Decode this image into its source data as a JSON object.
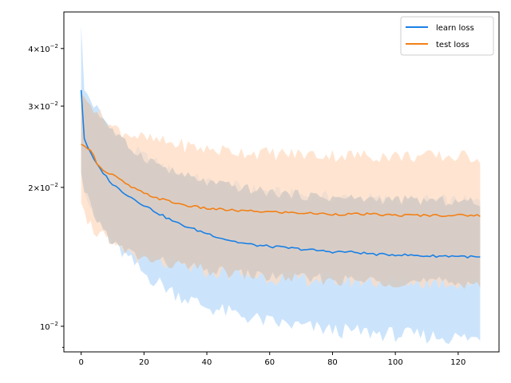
{
  "chart_data": {
    "type": "line",
    "title": "",
    "xlabel": "",
    "ylabel": "",
    "y_scale": "log",
    "xlim": [
      -5.5,
      133
    ],
    "ylim": [
      0.0088,
      0.048
    ],
    "grid": false,
    "legend": {
      "position": "top-right"
    },
    "x_ticks": [
      0,
      20,
      40,
      60,
      80,
      100,
      120
    ],
    "y_ticks": [
      {
        "value": 0.01,
        "label": "10^-2"
      },
      {
        "value": 0.02,
        "label": "2×10^-2"
      },
      {
        "value": 0.03,
        "label": "3×10^-2"
      },
      {
        "value": 0.04,
        "label": "4×10^-2"
      }
    ],
    "x_range": [
      0,
      127
    ],
    "series": [
      {
        "name": "learn loss",
        "color": "#1a80e6",
        "band_color": "#cce4fb",
        "mean_anchors": [
          [
            0,
            0.0325
          ],
          [
            1,
            0.0255
          ],
          [
            3,
            0.0237
          ],
          [
            5,
            0.0224
          ],
          [
            8,
            0.0211
          ],
          [
            10,
            0.0203
          ],
          [
            15,
            0.0192
          ],
          [
            20,
            0.0183
          ],
          [
            25,
            0.0175
          ],
          [
            30,
            0.0168
          ],
          [
            35,
            0.0163
          ],
          [
            40,
            0.0159
          ],
          [
            45,
            0.0155
          ],
          [
            50,
            0.0152
          ],
          [
            55,
            0.015
          ],
          [
            60,
            0.0149
          ],
          [
            65,
            0.0148
          ],
          [
            70,
            0.0147
          ],
          [
            75,
            0.0146
          ],
          [
            80,
            0.0145
          ],
          [
            85,
            0.0145
          ],
          [
            90,
            0.0144
          ],
          [
            95,
            0.0143
          ],
          [
            100,
            0.0143
          ],
          [
            110,
            0.0142
          ],
          [
            120,
            0.0142
          ],
          [
            127,
            0.0141
          ]
        ],
        "upper_anchors": [
          [
            0,
            0.045
          ],
          [
            1,
            0.0325
          ],
          [
            5,
            0.0295
          ],
          [
            10,
            0.0265
          ],
          [
            15,
            0.0245
          ],
          [
            20,
            0.0233
          ],
          [
            30,
            0.0215
          ],
          [
            40,
            0.0205
          ],
          [
            60,
            0.0195
          ],
          [
            80,
            0.019
          ],
          [
            100,
            0.0188
          ],
          [
            127,
            0.0186
          ]
        ],
        "lower_anchors": [
          [
            0,
            0.0215
          ],
          [
            1,
            0.0195
          ],
          [
            5,
            0.017
          ],
          [
            10,
            0.0152
          ],
          [
            15,
            0.014
          ],
          [
            20,
            0.013
          ],
          [
            30,
            0.0118
          ],
          [
            40,
            0.011
          ],
          [
            60,
            0.0102
          ],
          [
            80,
            0.0098
          ],
          [
            100,
            0.0096
          ],
          [
            127,
            0.0094
          ]
        ]
      },
      {
        "name": "test loss",
        "color": "#f28017",
        "band_color": "#ffdcc1",
        "mean_anchors": [
          [
            0,
            0.0248
          ],
          [
            3,
            0.0242
          ],
          [
            5,
            0.0226
          ],
          [
            8,
            0.0215
          ],
          [
            10,
            0.0213
          ],
          [
            15,
            0.0202
          ],
          [
            20,
            0.0194
          ],
          [
            25,
            0.0189
          ],
          [
            30,
            0.0185
          ],
          [
            35,
            0.0182
          ],
          [
            40,
            0.018
          ],
          [
            50,
            0.0178
          ],
          [
            60,
            0.0177
          ],
          [
            70,
            0.0176
          ],
          [
            80,
            0.0175
          ],
          [
            90,
            0.0175
          ],
          [
            100,
            0.0174
          ],
          [
            110,
            0.0174
          ],
          [
            127,
            0.0174
          ]
        ],
        "upper_anchors": [
          [
            0,
            0.032
          ],
          [
            5,
            0.029
          ],
          [
            10,
            0.027
          ],
          [
            20,
            0.0255
          ],
          [
            40,
            0.0242
          ],
          [
            60,
            0.0237
          ],
          [
            80,
            0.0235
          ],
          [
            100,
            0.0234
          ],
          [
            127,
            0.0233
          ]
        ],
        "lower_anchors": [
          [
            0,
            0.0185
          ],
          [
            3,
            0.0165
          ],
          [
            5,
            0.016
          ],
          [
            10,
            0.015
          ],
          [
            20,
            0.014
          ],
          [
            40,
            0.0132
          ],
          [
            60,
            0.0128
          ],
          [
            80,
            0.0126
          ],
          [
            100,
            0.0125
          ],
          [
            127,
            0.0124
          ]
        ]
      }
    ]
  }
}
